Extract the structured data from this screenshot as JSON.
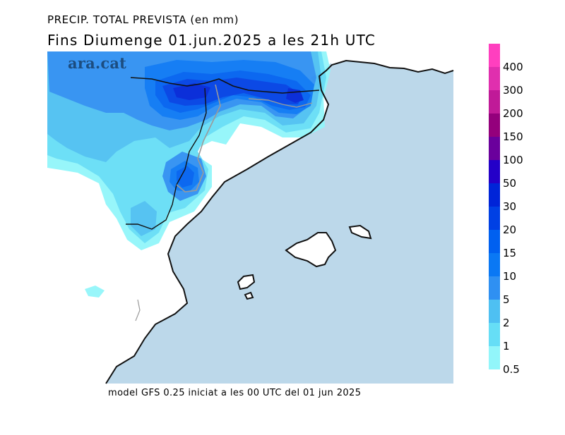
{
  "title": "PRECIP. TOTAL PREVISTA (en mm)",
  "subtitle": "Fins Diumenge 01.jun.2025 a les 21h UTC",
  "watermark": "ara.cat",
  "footer": "model GFS 0.25 iniciat a les 00 UTC del 01 jun 2025",
  "colors": {
    "sea": "#bcd8ea",
    "land": "#ffffff",
    "coast": "#111111",
    "border": "#9a9a9a"
  },
  "legend": [
    {
      "label": "400",
      "color": "#ff3fbf"
    },
    {
      "label": "300",
      "color": "#e02fae"
    },
    {
      "label": "200",
      "color": "#c01a98"
    },
    {
      "label": "150",
      "color": "#94007c"
    },
    {
      "label": "100",
      "color": "#6a009c"
    },
    {
      "label": "50",
      "color": "#2400c8"
    },
    {
      "label": "30",
      "color": "#0024d8"
    },
    {
      "label": "20",
      "color": "#0040e4"
    },
    {
      "label": "15",
      "color": "#0060f0"
    },
    {
      "label": "10",
      "color": "#0a78f4"
    },
    {
      "label": "5",
      "color": "#2f90f2"
    },
    {
      "label": "2",
      "color": "#4ec0f2"
    },
    {
      "label": "1",
      "color": "#66def6"
    },
    {
      "label": "0.5",
      "color": "#92f6fa"
    }
  ]
}
